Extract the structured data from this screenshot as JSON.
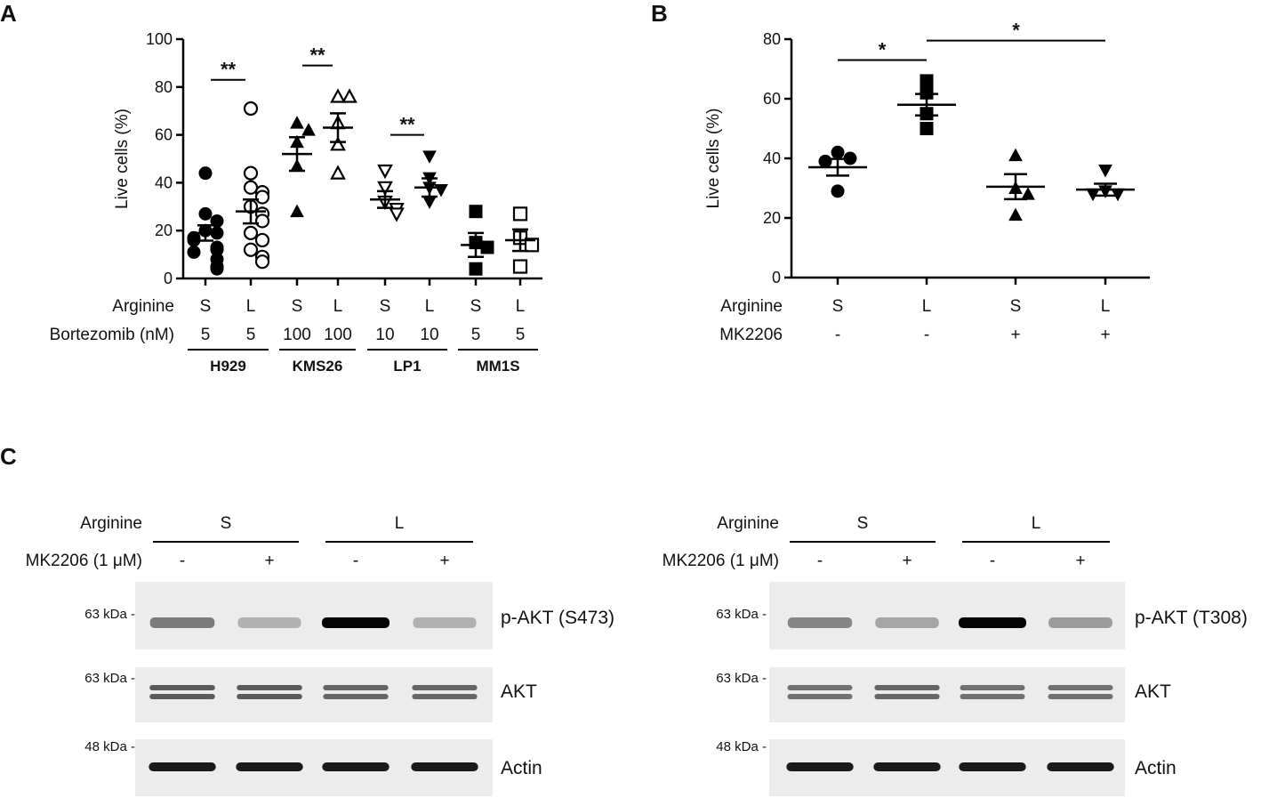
{
  "panel_labels": {
    "a": "A",
    "b": "B",
    "c": "C"
  },
  "chart_data": [
    {
      "type": "scatter",
      "panel": "A",
      "ylabel": "Live cells (%)",
      "ylim": [
        0,
        100
      ],
      "yticks": [
        "0",
        "20",
        "40",
        "60",
        "80",
        "100"
      ],
      "row_labels": {
        "arginine": "Arginine",
        "bortezomib": "Bortezomib (nM)"
      },
      "groups": [
        {
          "cell_line": "H929",
          "arginine": "S",
          "bortezomib": "5",
          "marker": "circle-filled",
          "values": [
            44,
            27,
            24,
            20,
            19,
            17,
            16,
            13,
            12,
            11,
            8,
            5,
            4
          ],
          "mean": 19,
          "sem": 3.2
        },
        {
          "cell_line": "H929",
          "arginine": "L",
          "bortezomib": "5",
          "marker": "circle-open",
          "values": [
            71,
            44,
            38,
            36,
            34,
            30,
            27,
            24,
            19,
            16,
            12,
            9,
            7
          ],
          "mean": 28,
          "sem": 5
        },
        {
          "cell_line": "KMS26",
          "arginine": "S",
          "bortezomib": "100",
          "marker": "triangle-filled",
          "values": [
            65,
            62,
            57,
            47,
            28
          ],
          "mean": 52,
          "sem": 7
        },
        {
          "cell_line": "KMS26",
          "arginine": "L",
          "bortezomib": "100",
          "marker": "triangle-open",
          "values": [
            76,
            76,
            65,
            56,
            44
          ],
          "mean": 63,
          "sem": 6
        },
        {
          "cell_line": "LP1",
          "arginine": "S",
          "bortezomib": "10",
          "marker": "triangle-down-open",
          "values": [
            45,
            38,
            32,
            29,
            27
          ],
          "mean": 33,
          "sem": 3.5
        },
        {
          "cell_line": "LP1",
          "arginine": "L",
          "bortezomib": "10",
          "marker": "triangle-down-filled",
          "values": [
            51,
            42,
            38,
            37,
            32
          ],
          "mean": 38,
          "sem": 3.8
        },
        {
          "cell_line": "MM1S",
          "arginine": "S",
          "bortezomib": "5",
          "marker": "square-filled",
          "values": [
            28,
            15,
            13,
            4
          ],
          "mean": 14,
          "sem": 5
        },
        {
          "cell_line": "MM1S",
          "arginine": "L",
          "bortezomib": "5",
          "marker": "square-open",
          "values": [
            27,
            17,
            14,
            5
          ],
          "mean": 16,
          "sem": 4.5
        }
      ],
      "cell_lines": [
        "H929",
        "KMS26",
        "LP1",
        "MM1S"
      ],
      "significance": [
        {
          "groups": [
            0,
            1
          ],
          "label": "**",
          "y": 83
        },
        {
          "groups": [
            2,
            3
          ],
          "label": "**",
          "y": 89
        },
        {
          "groups": [
            4,
            5
          ],
          "label": "**",
          "y": 60
        }
      ],
      "grid": false
    },
    {
      "type": "scatter",
      "panel": "B",
      "ylabel": "Live cells (%)",
      "ylim": [
        0,
        80
      ],
      "yticks": [
        "0",
        "20",
        "40",
        "60",
        "80"
      ],
      "row_labels": {
        "arginine": "Arginine",
        "mk2206": "MK2206"
      },
      "groups": [
        {
          "arginine": "S",
          "mk2206": "-",
          "marker": "circle-filled",
          "values": [
            42,
            40,
            39,
            29
          ],
          "mean": 37,
          "sem": 2.8
        },
        {
          "arginine": "L",
          "mk2206": "-",
          "marker": "square-filled",
          "values": [
            66,
            62,
            55,
            50
          ],
          "mean": 58,
          "sem": 3.6
        },
        {
          "arginine": "S",
          "mk2206": "+",
          "marker": "triangle-filled",
          "values": [
            41,
            30,
            28,
            21
          ],
          "mean": 30.5,
          "sem": 4.2
        },
        {
          "arginine": "L",
          "mk2206": "+",
          "marker": "triangle-down-filled",
          "values": [
            36,
            29,
            28,
            28
          ],
          "mean": 29.5,
          "sem": 2
        }
      ],
      "significance": [
        {
          "groups": [
            0,
            1
          ],
          "label": "*",
          "y": 73
        },
        {
          "groups": [
            1,
            3
          ],
          "label": "*",
          "y": 79.5
        }
      ],
      "grid": false
    }
  ],
  "western_blots": [
    {
      "arginine_label": "Arginine",
      "mk_label": "MK2206 (1 μM)",
      "arginine_groups": [
        "S",
        "L"
      ],
      "mk_lanes": [
        "-",
        "+",
        "-",
        "+"
      ],
      "rows": [
        {
          "marker": "63 kDa -",
          "label": "p-AKT (S473)",
          "intensity": [
            0.45,
            0.2,
            1.0,
            0.2
          ]
        },
        {
          "marker": "63 kDa -",
          "label": "AKT",
          "intensity": [
            0.6,
            0.6,
            0.55,
            0.55
          ]
        },
        {
          "marker": "48 kDa -",
          "label": "Actin",
          "intensity": [
            0.9,
            0.9,
            0.9,
            0.9
          ]
        }
      ]
    },
    {
      "arginine_label": "Arginine",
      "mk_label": "MK2206 (1 μM)",
      "arginine_groups": [
        "S",
        "L"
      ],
      "mk_lanes": [
        "-",
        "+",
        "-",
        "+"
      ],
      "rows": [
        {
          "marker": "63 kDa -",
          "label": "p-AKT (T308)",
          "intensity": [
            0.4,
            0.25,
            1.0,
            0.3
          ]
        },
        {
          "marker": "63 kDa -",
          "label": "AKT",
          "intensity": [
            0.5,
            0.55,
            0.5,
            0.5
          ]
        },
        {
          "marker": "48 kDa -",
          "label": "Actin",
          "intensity": [
            0.9,
            0.9,
            0.9,
            0.9
          ]
        }
      ]
    }
  ]
}
